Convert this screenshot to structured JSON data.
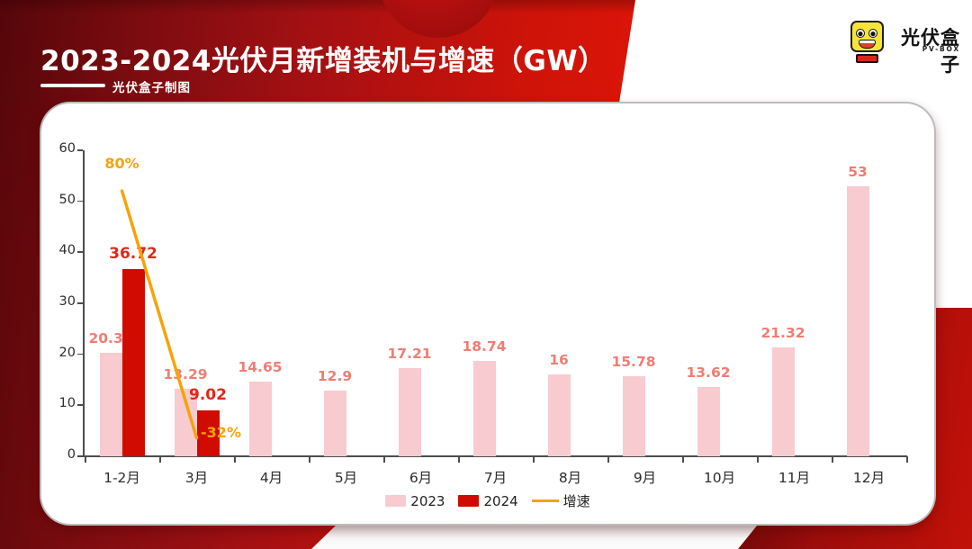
{
  "page": {
    "title": "2023-2024光伏月新增装机与增速（GW）",
    "byline": "光伏盒子制图"
  },
  "logo": {
    "brand": "光伏盒子",
    "sub_brand": "PV-BOX"
  },
  "chart_data": {
    "type": "bar",
    "title": "2023-2024光伏月新增装机与增速（GW）",
    "unit": "GW",
    "categories": [
      "1-2月",
      "3月",
      "4月",
      "5月",
      "6月",
      "7月",
      "8月",
      "9月",
      "10月",
      "11月",
      "12月"
    ],
    "series": [
      {
        "name": "2023",
        "type": "bar",
        "color": "#f8cbd1",
        "label_color": "#ee7e74",
        "values": [
          20.37,
          13.29,
          14.65,
          12.9,
          17.21,
          18.74,
          16,
          15.78,
          13.62,
          21.32,
          53
        ]
      },
      {
        "name": "2024",
        "type": "bar",
        "color": "#d10b00",
        "label_color": "#e0281c",
        "values": [
          36.72,
          9.02,
          null,
          null,
          null,
          null,
          null,
          null,
          null,
          null,
          null
        ]
      },
      {
        "name": "增速",
        "type": "line",
        "color": "#f6a30b",
        "points": [
          {
            "category": "1-2月",
            "value_pct": 80,
            "label": "80%",
            "label_pos": "above"
          },
          {
            "category": "3月",
            "value_pct": -32,
            "label": "-32%",
            "label_pos": "right"
          }
        ]
      }
    ],
    "ylim": [
      0,
      60
    ],
    "yticks": [
      0,
      10,
      20,
      30,
      40,
      50,
      60
    ],
    "y2lim_pct": [
      -40.3,
      98.4
    ],
    "grid": false,
    "legend_position": "bottom",
    "legend": [
      {
        "label": "2023",
        "swatch": "rect",
        "color": "#f8cbd1"
      },
      {
        "label": "2024",
        "swatch": "rect",
        "color": "#d10b00"
      },
      {
        "label": "增速",
        "swatch": "line",
        "color": "#f6a30b"
      }
    ]
  }
}
